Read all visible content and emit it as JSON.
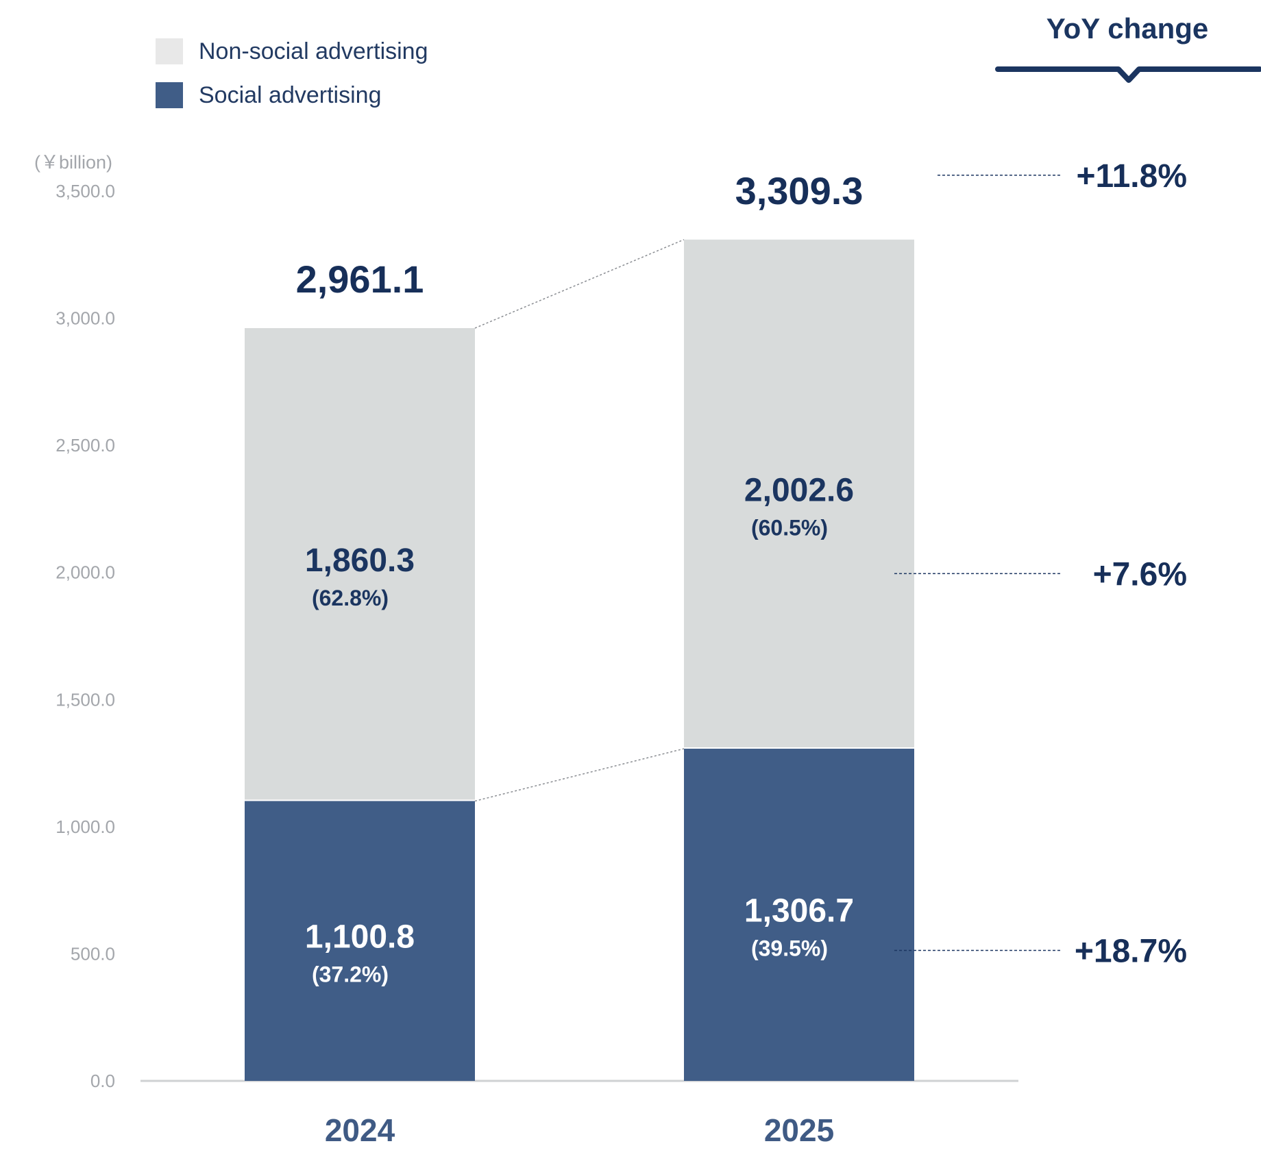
{
  "chart_data": {
    "type": "bar",
    "stacked": true,
    "categories": [
      "2024",
      "2025"
    ],
    "unit_label": "(￥billion)",
    "ylim": [
      0,
      3500
    ],
    "yticks": [
      "0.0",
      "500.0",
      "1,000.0",
      "1,500.0",
      "2,000.0",
      "2,500.0",
      "3,000.0",
      "3,500.0"
    ],
    "ytick_values": [
      0,
      500,
      1000,
      1500,
      2000,
      2500,
      3000,
      3500
    ],
    "series": [
      {
        "name": "Social advertising",
        "color": "#405d87",
        "label_color": "#ffffff",
        "values": [
          1100.8,
          1306.7
        ],
        "labels": [
          "1,100.8",
          "1,306.7"
        ],
        "shares": [
          "(37.2%)",
          "(39.5%)"
        ]
      },
      {
        "name": "Non-social advertising",
        "color": "#d8dbdb",
        "label_color": "#1b3560",
        "values": [
          1860.3,
          2002.6
        ],
        "labels": [
          "1,860.3",
          "2,002.6"
        ],
        "shares": [
          "(62.8%)",
          "(60.5%)"
        ]
      }
    ],
    "totals": [
      2961.1,
      3309.3
    ],
    "total_labels": [
      "2,961.1",
      "3,309.3"
    ],
    "legend": [
      {
        "name": "Non-social advertising",
        "color": "#e8e8e8"
      },
      {
        "name": "Social advertising",
        "color": "#405d87"
      }
    ],
    "yoy": {
      "title": "YoY change",
      "total": "+11.8%",
      "non_social": "+7.6%",
      "social": "+18.7%"
    },
    "grid": false,
    "legend_position": "top-left"
  }
}
